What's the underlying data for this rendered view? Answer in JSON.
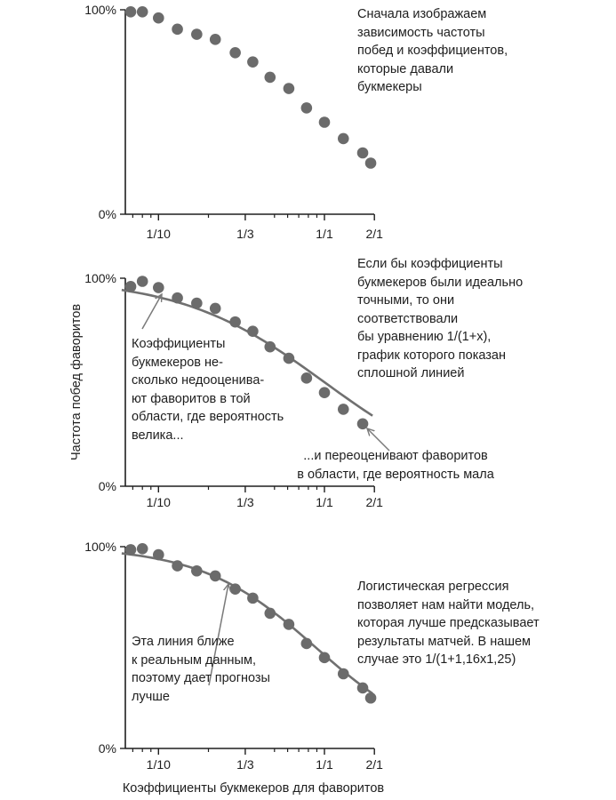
{
  "chart_data": [
    {
      "type": "scatter",
      "x_scale": "log",
      "xlim": [
        0.06,
        2
      ],
      "ylim": [
        0,
        100
      ],
      "x_ticks": [
        {
          "value": 0.1,
          "label": "1/10"
        },
        {
          "value": 0.3333,
          "label": "1/3"
        },
        {
          "value": 1,
          "label": "1/1"
        },
        {
          "value": 2,
          "label": "2/1"
        }
      ],
      "y_ticks": [
        {
          "value": 0,
          "label": "0%"
        },
        {
          "value": 100,
          "label": "100%"
        }
      ],
      "points": {
        "x": [
          0.068,
          0.08,
          0.1,
          0.13,
          0.17,
          0.22,
          0.29,
          0.37,
          0.47,
          0.61,
          0.78,
          1.0,
          1.3,
          1.7,
          1.9
        ],
        "y": [
          99,
          99,
          96,
          90.5,
          88,
          85.5,
          79,
          74.5,
          67,
          61.5,
          52,
          45,
          37,
          30,
          25
        ]
      },
      "curve": null,
      "annotations": [
        {
          "lines": [
            "Сначала изображаем",
            "зависимость частоты",
            "побед и коэффициентов,",
            "которые давали",
            "букмекеры"
          ]
        }
      ]
    },
    {
      "type": "scatter",
      "x_scale": "log",
      "xlim": [
        0.06,
        2
      ],
      "ylim": [
        0,
        100
      ],
      "x_ticks": [
        {
          "value": 0.1,
          "label": "1/10"
        },
        {
          "value": 0.3333,
          "label": "1/3"
        },
        {
          "value": 1,
          "label": "1/1"
        },
        {
          "value": 2,
          "label": "2/1"
        }
      ],
      "y_ticks": [
        {
          "value": 0,
          "label": "0%"
        },
        {
          "value": 100,
          "label": "100%"
        }
      ],
      "ylabel": "Частота побед фаворитов",
      "points": {
        "x": [
          0.068,
          0.08,
          0.1,
          0.13,
          0.17,
          0.22,
          0.29,
          0.37,
          0.47,
          0.61,
          0.78,
          1.0,
          1.3,
          1.7
        ],
        "y": [
          96,
          98.5,
          95.5,
          90.5,
          88,
          85.5,
          79,
          74.5,
          67,
          61.5,
          52,
          45,
          37,
          30
        ]
      },
      "curve": {
        "formula": "1/(1+x)",
        "a": 1,
        "b": 1
      },
      "annotations": [
        {
          "lines": [
            "Если бы коэффициенты",
            "букмекеров были идеально",
            "точными, то они",
            "соответствовали",
            "бы уравнению 1/(1+x),",
            "график которого показан",
            "сплошной линией"
          ]
        },
        {
          "lines": [
            "Коэффициенты",
            "букмекеров не-",
            "сколько недооценива-",
            "ют фаворитов в той",
            "области, где вероятность",
            "велика..."
          ]
        },
        {
          "lines": [
            "...и переоценивают фаворитов",
            "в области, где вероятность мала"
          ]
        }
      ]
    },
    {
      "type": "scatter",
      "x_scale": "log",
      "xlim": [
        0.06,
        2
      ],
      "ylim": [
        0,
        100
      ],
      "x_ticks": [
        {
          "value": 0.1,
          "label": "1/10"
        },
        {
          "value": 0.3333,
          "label": "1/3"
        },
        {
          "value": 1,
          "label": "1/1"
        },
        {
          "value": 2,
          "label": "2/1"
        }
      ],
      "y_ticks": [
        {
          "value": 0,
          "label": "0%"
        },
        {
          "value": 100,
          "label": "100%"
        }
      ],
      "xlabel": "Коэффициенты букмекеров для фаворитов",
      "points": {
        "x": [
          0.068,
          0.08,
          0.1,
          0.13,
          0.17,
          0.22,
          0.29,
          0.37,
          0.47,
          0.61,
          0.78,
          1.0,
          1.3,
          1.7,
          1.9
        ],
        "y": [
          98.5,
          99,
          96,
          90.5,
          88,
          85.5,
          79,
          74.5,
          67,
          61.5,
          52,
          45,
          37,
          30,
          25
        ]
      },
      "curve": {
        "formula": "1/(1+1,16x1,25)",
        "a": 1.16,
        "b": 1.25
      },
      "annotations": [
        {
          "lines": [
            "Логистическая регрессия",
            "позволяет нам найти модель,",
            "которая лучше предсказывает",
            "результаты матчей. В нашем",
            "случае это 1/(1+1,16x1,25)"
          ]
        },
        {
          "lines": [
            "Эта линия ближе",
            "к реальным данным,",
            "поэтому дает прогнозы",
            "лучше"
          ]
        }
      ]
    }
  ],
  "colors": {
    "points": "#6b6b6b",
    "curve": "#707070",
    "axis": "#1e1e1e",
    "arrow": "#7a7a7a",
    "text": "#1e1e1e"
  }
}
